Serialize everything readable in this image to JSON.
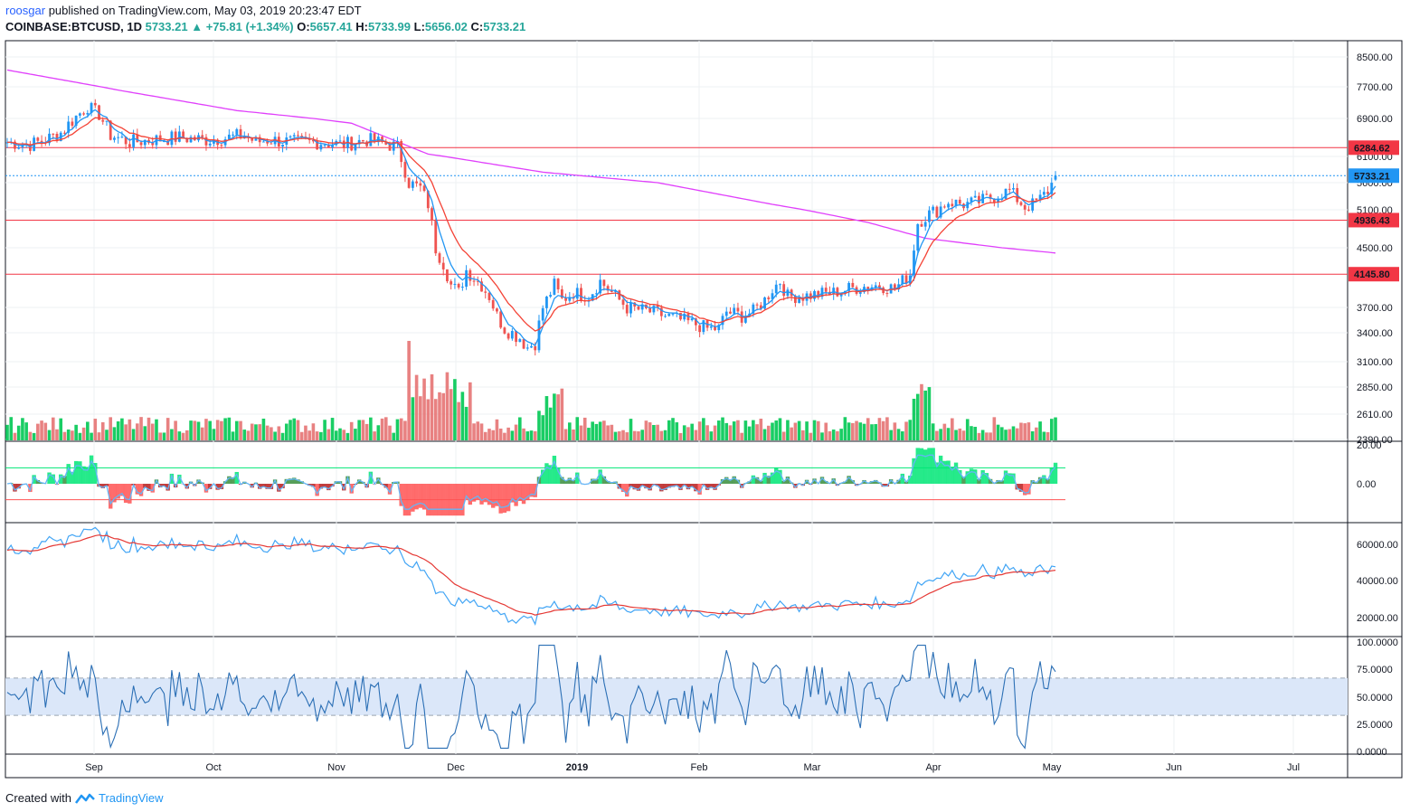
{
  "header": {
    "author": "roosgar",
    "published_text": "published on TradingView.com, May 03, 2019 20:23:47 EDT",
    "symbol": "COINBASE:BTCUSD, 1D",
    "last": "5733.21",
    "change": "+75.81 (+1.34%)",
    "open_label": "O:",
    "open": "5657.41",
    "high_label": "H:",
    "high": "5733.99",
    "low_label": "L:",
    "low": "5656.02",
    "close_label": "C:",
    "close": "5733.21"
  },
  "footer": {
    "created_with": "Created with",
    "brand": "TradingView",
    "logo_icon": "tradingview-logo-icon"
  },
  "colors": {
    "up": "#26a69a",
    "down": "#ef5350",
    "candle_up": "#2196f3",
    "candle_down": "#ef5350",
    "ema_fast": "#2196f3",
    "ema_slow": "#f44336",
    "sma_long": "#e040fb",
    "vol_up": "#00c853",
    "vol_down": "#e57373",
    "level": "#f23645",
    "osc_pos": "#00e676",
    "osc_pos_dark": "#388e3c",
    "osc_neg": "#ff5252",
    "osc_neg_dark": "#b71c1c",
    "rsi_band": "#dbe7f9",
    "rsi_line": "#2b6fb5"
  },
  "chart_data": {
    "type": "candlestick",
    "x_labels": [
      "Sep",
      "Oct",
      "Nov",
      "Dec",
      "2019",
      "Feb",
      "Mar",
      "Apr",
      "May",
      "Jun",
      "Jul"
    ],
    "price_ticks": [
      "8500.00",
      "7700.00",
      "6900.00",
      "6100.00",
      "5600.00",
      "5100.00",
      "4500.00",
      "3700.00",
      "3400.00",
      "3100.00",
      "2850.00",
      "2610.00",
      "2390.00"
    ],
    "price_labels": [
      {
        "value": "6284.62",
        "color": "#f23645"
      },
      {
        "value": "5733.21",
        "color": "#2196f3"
      },
      {
        "value": "4936.43",
        "color": "#f23645"
      },
      {
        "value": "4145.80",
        "color": "#f23645"
      }
    ],
    "horizontal_levels": [
      6284.62,
      4936.43,
      4145.8
    ],
    "last_price": 5733.21,
    "price_path": [
      [
        0,
        6400
      ],
      [
        6,
        6350
      ],
      [
        10,
        6450
      ],
      [
        14,
        6600
      ],
      [
        18,
        6950
      ],
      [
        21,
        7200
      ],
      [
        24,
        7000
      ],
      [
        27,
        6550
      ],
      [
        32,
        6400
      ],
      [
        38,
        6450
      ],
      [
        45,
        6500
      ],
      [
        52,
        6450
      ],
      [
        58,
        6500
      ],
      [
        62,
        6550
      ],
      [
        65,
        6400
      ],
      [
        68,
        6450
      ],
      [
        75,
        6400
      ],
      [
        82,
        6400
      ],
      [
        88,
        6350
      ],
      [
        94,
        6450
      ],
      [
        98,
        6380
      ],
      [
        102,
        6300
      ],
      [
        105,
        5600
      ],
      [
        108,
        5500
      ],
      [
        110,
        5200
      ],
      [
        112,
        4500
      ],
      [
        114,
        4300
      ],
      [
        116,
        4000
      ],
      [
        118,
        3900
      ],
      [
        120,
        4200
      ],
      [
        122,
        4100
      ],
      [
        124,
        4000
      ],
      [
        126,
        3850
      ],
      [
        128,
        3600
      ],
      [
        130,
        3450
      ],
      [
        132,
        3400
      ],
      [
        134,
        3350
      ],
      [
        136,
        3250
      ],
      [
        138,
        3300
      ],
      [
        140,
        3700
      ],
      [
        143,
        4000
      ],
      [
        145,
        3800
      ],
      [
        148,
        3900
      ],
      [
        152,
        3850
      ],
      [
        155,
        4050
      ],
      [
        158,
        3900
      ],
      [
        162,
        3700
      ],
      [
        168,
        3650
      ],
      [
        172,
        3600
      ],
      [
        176,
        3550
      ],
      [
        180,
        3500
      ],
      [
        183,
        3450
      ],
      [
        186,
        3450
      ],
      [
        188,
        3650
      ],
      [
        192,
        3600
      ],
      [
        195,
        3650
      ],
      [
        198,
        3800
      ],
      [
        200,
        3950
      ],
      [
        202,
        4050
      ],
      [
        204,
        3850
      ],
      [
        208,
        3850
      ],
      [
        212,
        3880
      ],
      [
        216,
        3900
      ],
      [
        220,
        3950
      ],
      [
        224,
        3980
      ],
      [
        228,
        4000
      ],
      [
        232,
        3950
      ],
      [
        234,
        4050
      ],
      [
        236,
        4150
      ],
      [
        238,
        4900
      ],
      [
        240,
        5000
      ],
      [
        243,
        5100
      ],
      [
        246,
        5250
      ],
      [
        250,
        5200
      ],
      [
        254,
        5250
      ],
      [
        258,
        5350
      ],
      [
        262,
        5450
      ],
      [
        264,
        5300
      ],
      [
        266,
        5150
      ],
      [
        268,
        5200
      ],
      [
        270,
        5300
      ],
      [
        272,
        5450
      ],
      [
        274,
        5700
      ]
    ],
    "sma_long_path": [
      [
        0,
        8150
      ],
      [
        30,
        7600
      ],
      [
        60,
        7100
      ],
      [
        90,
        6800
      ],
      [
        110,
        6150
      ],
      [
        140,
        5800
      ],
      [
        170,
        5600
      ],
      [
        200,
        5200
      ],
      [
        225,
        4900
      ],
      [
        240,
        4650
      ],
      [
        260,
        4500
      ],
      [
        274,
        4430
      ]
    ],
    "volume": {
      "max_relative": 1.0
    },
    "indicator_osc_ticks": [
      "20.00",
      "0.00"
    ],
    "indicator_osc_levels": [
      8,
      -8
    ],
    "indicator_obv_ticks": [
      "60000.00",
      "40000.00",
      "20000.00"
    ],
    "rsi_ticks": [
      "100.0000",
      "75.0000",
      "50.0000",
      "25.0000",
      "0.0000"
    ],
    "rsi_band": [
      33,
      67
    ]
  }
}
